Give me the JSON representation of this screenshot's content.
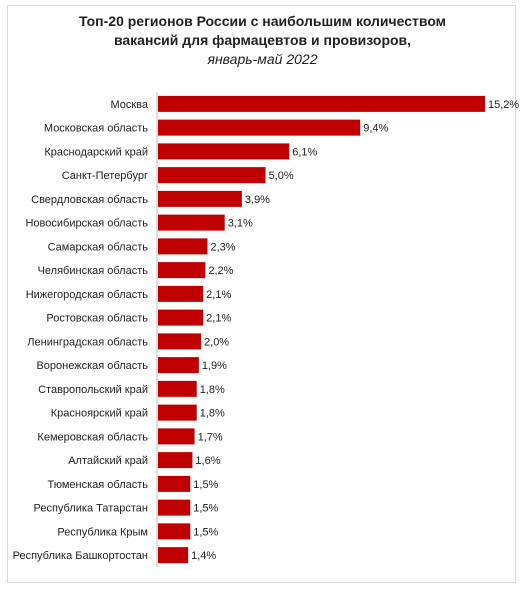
{
  "chart_data": {
    "type": "bar",
    "orientation": "horizontal",
    "title": "Топ-20 регионов России с наибольшим количеством вакансий для фармацевтов и провизоров,",
    "title_line1": "Топ-20 регионов России с наибольшим количеством",
    "title_line2": "вакансий для фармацевтов и провизоров,",
    "subtitle": "январь-май 2022",
    "bar_color": "#c00000",
    "categories": [
      "Москва",
      "Московская область",
      "Краснодарский край",
      "Санкт-Петербург",
      "Свердловская область",
      "Новосибирская область",
      "Самарская область",
      "Челябинская область",
      "Нижегородская область",
      "Ростовская область",
      "Ленинградская область",
      "Воронежская область",
      "Ставропольский край",
      "Красноярский край",
      "Кемеровская область",
      "Алтайский край",
      "Тюменская область",
      "Республика Татарстан",
      "Республика Крым",
      "Республика Башкортостан"
    ],
    "values": [
      15.2,
      9.4,
      6.1,
      5.0,
      3.9,
      3.1,
      2.3,
      2.2,
      2.1,
      2.1,
      2.0,
      1.9,
      1.8,
      1.8,
      1.7,
      1.6,
      1.5,
      1.5,
      1.5,
      1.4
    ],
    "value_labels": [
      "15,2%",
      "9,4%",
      "6,1%",
      "5,0%",
      "3,9%",
      "3,1%",
      "2,3%",
      "2,2%",
      "2,1%",
      "2,1%",
      "2,0%",
      "1,9%",
      "1,8%",
      "1,8%",
      "1,7%",
      "1,6%",
      "1,5%",
      "1,5%",
      "1,5%",
      "1,4%"
    ],
    "unit": "%",
    "grid": false,
    "legend": "none"
  }
}
